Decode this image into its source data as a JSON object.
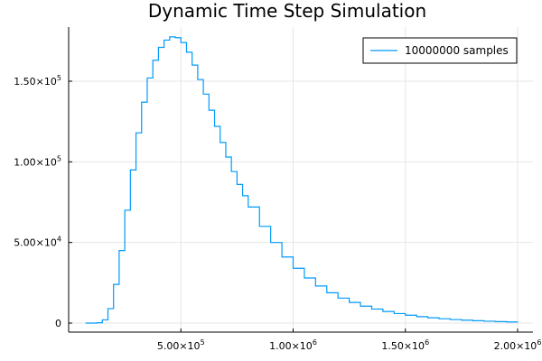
{
  "chart_data": {
    "type": "histogram-step",
    "title": "Dynamic Time Step Simulation",
    "xlabel": "",
    "ylabel": "",
    "xlim": [
      0,
      2000000
    ],
    "ylim": [
      0,
      180000
    ],
    "grid": true,
    "legend_position": "top-right",
    "x_ticks": [
      {
        "value": 500000,
        "mantissa": "5.00×10",
        "exp": "5"
      },
      {
        "value": 1000000,
        "mantissa": "1.00×10",
        "exp": "6"
      },
      {
        "value": 1500000,
        "mantissa": "1.50×10",
        "exp": "6"
      },
      {
        "value": 2000000,
        "mantissa": "2.00×10",
        "exp": "6"
      }
    ],
    "y_ticks": [
      {
        "value": 0,
        "mantissa": "0",
        "exp": ""
      },
      {
        "value": 50000,
        "mantissa": "5.00×10",
        "exp": "4"
      },
      {
        "value": 100000,
        "mantissa": "1.00×10",
        "exp": "5"
      },
      {
        "value": 150000,
        "mantissa": "1.50×10",
        "exp": "5"
      }
    ],
    "series": [
      {
        "name": "10000000 samples",
        "color": "#009AFA",
        "x": [
          75000,
          100000,
          125000,
          150000,
          175000,
          200000,
          225000,
          250000,
          275000,
          300000,
          325000,
          350000,
          375000,
          400000,
          425000,
          450000,
          475000,
          500000,
          525000,
          550000,
          575000,
          600000,
          625000,
          650000,
          675000,
          700000,
          725000,
          750000,
          775000,
          800000,
          850000,
          900000,
          950000,
          1000000,
          1050000,
          1100000,
          1150000,
          1200000,
          1250000,
          1300000,
          1350000,
          1400000,
          1450000,
          1500000,
          1550000,
          1600000,
          1650000,
          1700000,
          1750000,
          1800000,
          1850000,
          1900000,
          1950000,
          2000000
        ],
        "y": [
          0,
          0,
          200,
          2000,
          9000,
          24000,
          45000,
          70000,
          95000,
          118000,
          137000,
          152000,
          163000,
          171000,
          175500,
          177500,
          177000,
          174000,
          168000,
          160000,
          151000,
          142000,
          132000,
          122000,
          112000,
          103000,
          94000,
          86000,
          79000,
          72000,
          60000,
          50000,
          41000,
          34000,
          28000,
          23000,
          18800,
          15500,
          12800,
          10500,
          8700,
          7200,
          5900,
          4900,
          4000,
          3300,
          2700,
          2200,
          1800,
          1450,
          1150,
          900,
          700,
          500
        ]
      }
    ]
  },
  "legend": {
    "label": "10000000 samples"
  }
}
